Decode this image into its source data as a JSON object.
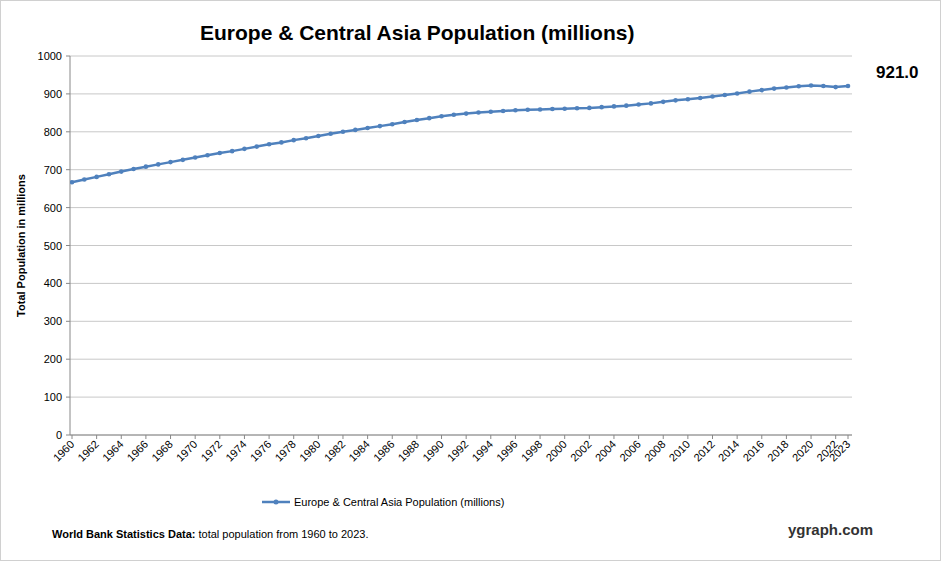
{
  "chart_data": {
    "type": "line",
    "title": "Europe & Central Asia Population (millions)",
    "y_label": "Total Population  in millions",
    "annotation": "921.0",
    "source_label": "World Bank Statistics Data:",
    "source": "total population from 1960 to 2023.",
    "brand": "ygraph.com",
    "x": [
      1960,
      1961,
      1962,
      1963,
      1964,
      1965,
      1966,
      1967,
      1968,
      1969,
      1970,
      1971,
      1972,
      1973,
      1974,
      1975,
      1976,
      1977,
      1978,
      1979,
      1980,
      1981,
      1982,
      1983,
      1984,
      1985,
      1986,
      1987,
      1988,
      1989,
      1990,
      1991,
      1992,
      1993,
      1994,
      1995,
      1996,
      1997,
      1998,
      1999,
      2000,
      2001,
      2002,
      2003,
      2004,
      2005,
      2006,
      2007,
      2008,
      2009,
      2010,
      2011,
      2012,
      2013,
      2014,
      2015,
      2016,
      2017,
      2018,
      2019,
      2020,
      2021,
      2022,
      2023
    ],
    "series": [
      {
        "name": "Europe & Central Asia Population (millions)",
        "color": "#4f81bd",
        "marker": "circle",
        "values": [
          667,
          674,
          681,
          688,
          695,
          702,
          708,
          714,
          720,
          726,
          732,
          738,
          744,
          749,
          755,
          761,
          767,
          772,
          778,
          783,
          789,
          795,
          800,
          805,
          810,
          815,
          820,
          826,
          831,
          836,
          841,
          845,
          848,
          851,
          853,
          855,
          857,
          858,
          859,
          860,
          861,
          862,
          863,
          865,
          867,
          869,
          872,
          875,
          879,
          883,
          886,
          889,
          893,
          897,
          901,
          906,
          910,
          914,
          917,
          920,
          922,
          921,
          918,
          921
        ]
      }
    ],
    "xlim": [
      1960,
      2023
    ],
    "xticks": [
      1960,
      1962,
      1964,
      1966,
      1968,
      1970,
      1972,
      1974,
      1976,
      1978,
      1980,
      1982,
      1984,
      1986,
      1988,
      1990,
      1992,
      1994,
      1996,
      1998,
      2000,
      2002,
      2004,
      2006,
      2008,
      2010,
      2012,
      2014,
      2016,
      2018,
      2020,
      2022,
      2023
    ],
    "ylim": [
      0,
      1000
    ],
    "yticks": [
      0,
      100,
      200,
      300,
      400,
      500,
      600,
      700,
      800,
      900,
      1000
    ],
    "grid": true,
    "legend": "bottom"
  }
}
